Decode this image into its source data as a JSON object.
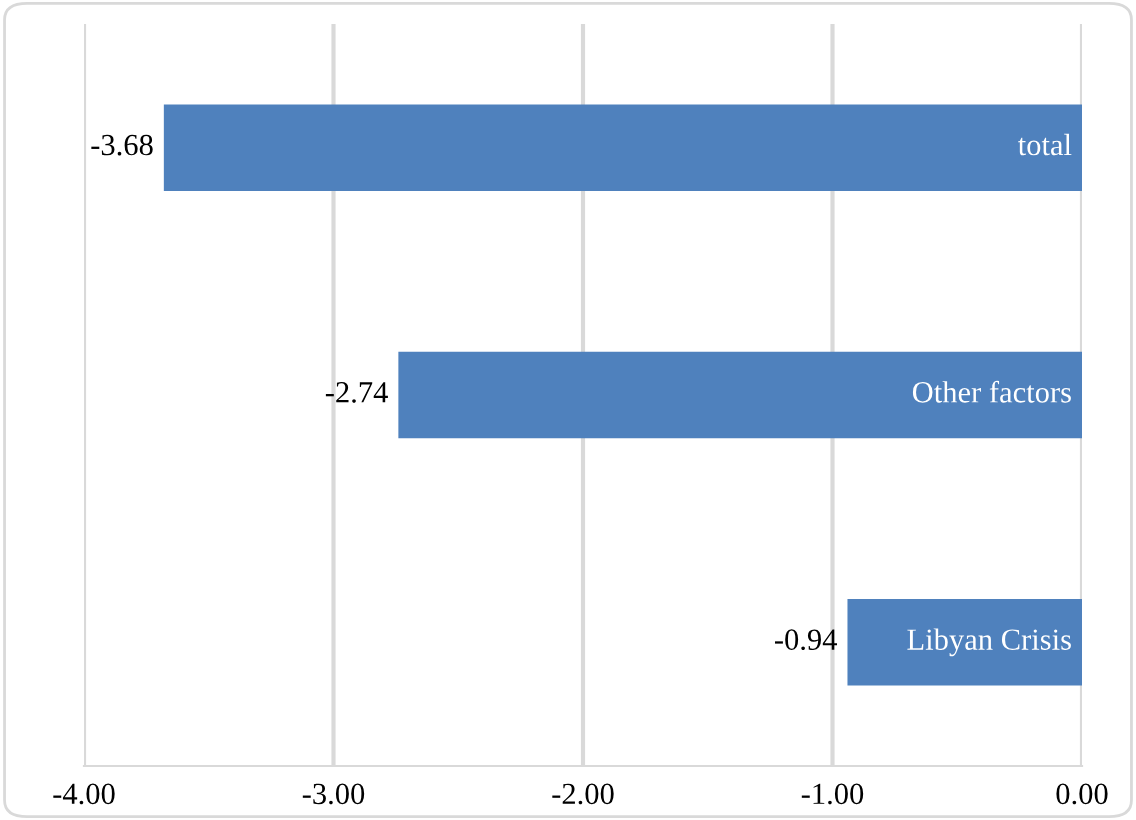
{
  "chart_data": {
    "type": "bar",
    "orientation": "horizontal",
    "categories": [
      "total",
      "Other factors",
      "Libyan Crisis"
    ],
    "values": [
      -3.68,
      -2.74,
      -0.94
    ],
    "value_labels": [
      "-3.68",
      "-2.74",
      "-0.94"
    ],
    "color": "#4f81bd",
    "xlim": [
      -4,
      0
    ],
    "xticks": [
      {
        "value": -4,
        "label": "-4.00"
      },
      {
        "value": -3,
        "label": "-3.00"
      },
      {
        "value": -2,
        "label": "-2.00"
      },
      {
        "value": -1,
        "label": "-1.00"
      },
      {
        "value": 0,
        "label": "0.00"
      }
    ],
    "grid": "x"
  }
}
